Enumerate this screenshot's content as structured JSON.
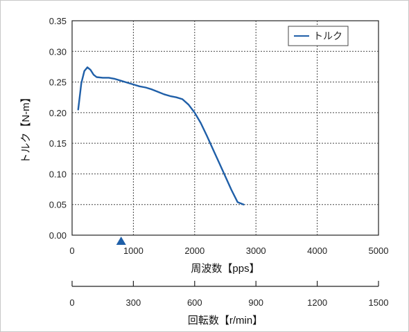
{
  "chart_data": {
    "type": "line",
    "x_label": "周波数【pps】",
    "y_label": "トルク【N-m】",
    "secondary_x_label": "回転数【r/min】",
    "x_ticks": [
      "0",
      "1000",
      "2000",
      "3000",
      "4000",
      "5000"
    ],
    "y_ticks": [
      "0.00",
      "0.05",
      "0.10",
      "0.15",
      "0.20",
      "0.25",
      "0.30",
      "0.35"
    ],
    "secondary_x_ticks": [
      "0",
      "300",
      "600",
      "900",
      "1200",
      "1500"
    ],
    "xlim": [
      0,
      5000
    ],
    "ylim": [
      0,
      0.35
    ],
    "secondary_xlim": [
      0,
      1500
    ],
    "grid": true,
    "legend_position": "top-right",
    "marker_x": 800,
    "series": [
      {
        "name": "トルク",
        "color": "#1f5fa8",
        "x": [
          100,
          150,
          200,
          250,
          300,
          350,
          400,
          500,
          600,
          700,
          800,
          900,
          1000,
          1100,
          1200,
          1300,
          1400,
          1500,
          1600,
          1700,
          1800,
          1900,
          2000,
          2100,
          2200,
          2300,
          2400,
          2500,
          2600,
          2700,
          2800
        ],
        "y": [
          0.205,
          0.248,
          0.268,
          0.274,
          0.27,
          0.262,
          0.258,
          0.257,
          0.257,
          0.255,
          0.252,
          0.249,
          0.246,
          0.243,
          0.241,
          0.238,
          0.234,
          0.23,
          0.227,
          0.225,
          0.222,
          0.213,
          0.2,
          0.183,
          0.162,
          0.14,
          0.118,
          0.096,
          0.074,
          0.054,
          0.05
        ]
      }
    ]
  }
}
